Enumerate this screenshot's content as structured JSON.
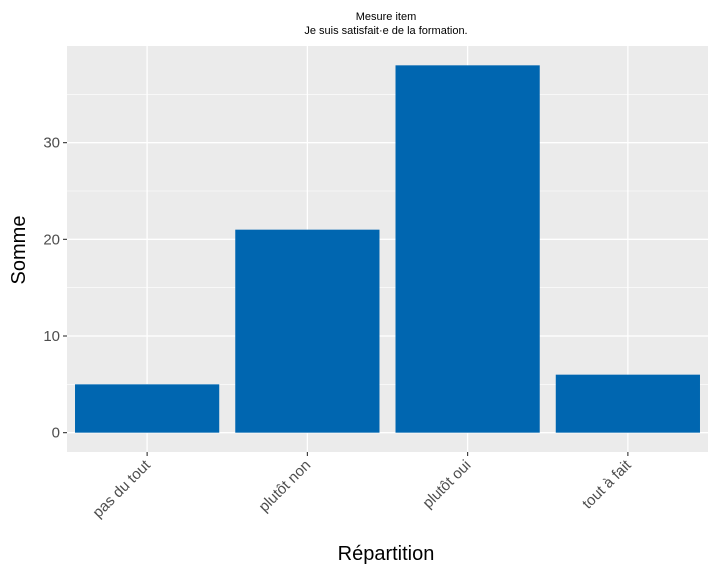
{
  "chart_data": {
    "type": "bar",
    "title": "Mesure item",
    "subtitle": "Je suis satisfait·e de la formation.",
    "xlabel": "Répartition",
    "ylabel": "Somme",
    "categories": [
      "pas du tout",
      "plutôt non",
      "plutôt oui",
      "tout à fait"
    ],
    "values": [
      5,
      21,
      38,
      6
    ],
    "ylim": [
      -2,
      40
    ],
    "yticks": [
      0,
      10,
      20,
      30
    ],
    "grid": true,
    "legend": "none",
    "colors": {
      "bar": "#0066b0",
      "panel": "#ebebeb",
      "grid": "#ffffff"
    }
  }
}
